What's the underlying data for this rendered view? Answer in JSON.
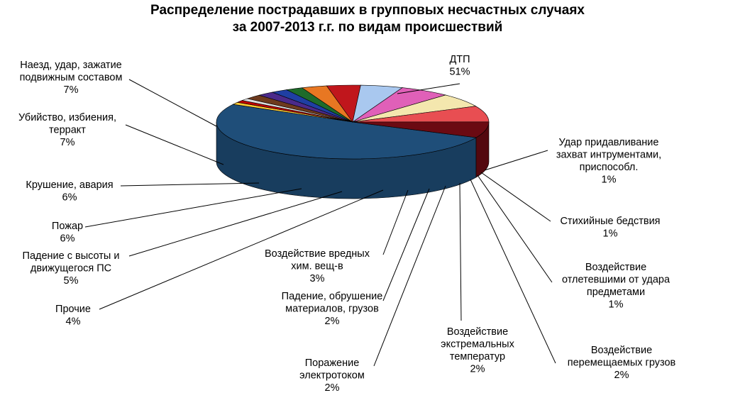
{
  "chart_data": {
    "type": "pie",
    "title": [
      "Распределение пострадавших в групповых несчастных случаях",
      "за 2007-2013 г.г. по видам происшествий"
    ],
    "slices": [
      {
        "lines": [
          "ДТП"
        ],
        "pct": "51%",
        "value": 51,
        "color": "#1f4e79"
      },
      {
        "lines": [
          "Удар придавливание",
          "захват интрументами,",
          "приспособл."
        ],
        "pct": "1%",
        "value": 1,
        "color": "#ffcc33"
      },
      {
        "lines": [
          "Стихийные бедствия"
        ],
        "pct": "1%",
        "value": 1,
        "color": "#c00000"
      },
      {
        "lines": [
          "Воздействие",
          "отлетевшими от удара",
          "предметами"
        ],
        "pct": "1%",
        "value": 1,
        "color": "#dddddd"
      },
      {
        "lines": [
          "Воздействие",
          "перемещаемых грузов"
        ],
        "pct": "2%",
        "value": 2,
        "color": "#6e3a1e"
      },
      {
        "lines": [
          "Воздействие",
          "экстремальных",
          "температур"
        ],
        "pct": "2%",
        "value": 2,
        "color": "#4b2a8a"
      },
      {
        "lines": [
          "Поражение",
          "электротоком"
        ],
        "pct": "2%",
        "value": 2,
        "color": "#1f3fa3"
      },
      {
        "lines": [
          "Падение, обрушение",
          "материалов, грузов"
        ],
        "pct": "2%",
        "value": 2,
        "color": "#1e6b2a"
      },
      {
        "lines": [
          "Воздействие вредных",
          "хим. вещ-в"
        ],
        "pct": "3%",
        "value": 3,
        "color": "#e87722"
      },
      {
        "lines": [
          "Прочие"
        ],
        "pct": "4%",
        "value": 4,
        "color": "#c0161c"
      },
      {
        "lines": [
          "Падение с высоты и",
          "движущегося ПС"
        ],
        "pct": "5%",
        "value": 5,
        "color": "#a9c8ef"
      },
      {
        "lines": [
          "Пожар"
        ],
        "pct": "6%",
        "value": 6,
        "color": "#e060b8"
      },
      {
        "lines": [
          "Крушение, авария"
        ],
        "pct": "6%",
        "value": 6,
        "color": "#f4e7ae"
      },
      {
        "lines": [
          "Убийство, избиения,",
          "терракт"
        ],
        "pct": "7%",
        "value": 7,
        "color": "#e84e52"
      },
      {
        "lines": [
          "Наезд, удар, зажатие",
          "подвижным составом"
        ],
        "pct": "7%",
        "value": 7,
        "color": "#6b0a12"
      }
    ]
  }
}
